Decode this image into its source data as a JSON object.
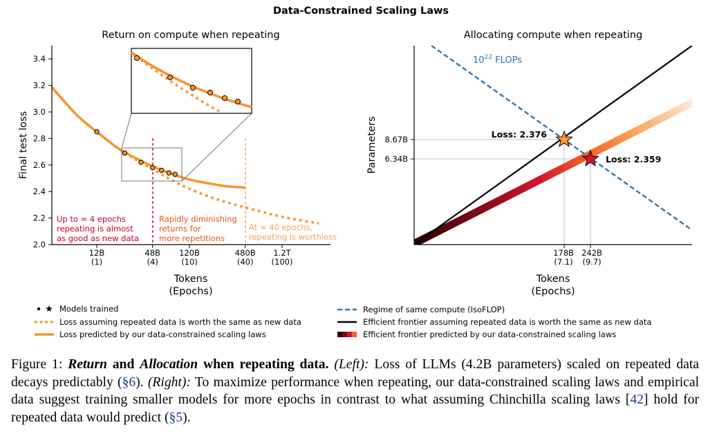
{
  "figure": {
    "suptitle": "Data-Constrained Scaling Laws"
  },
  "chart_data": [
    {
      "id": "left",
      "type": "line",
      "title": "Return on compute when repeating",
      "xlabel": "Tokens",
      "xlabel2": "(Epochs)",
      "ylabel": "Final test loss",
      "ylim": [
        2.0,
        3.5
      ],
      "log_x": true,
      "yticks": [
        {
          "value": 2.0,
          "label": "2.0"
        },
        {
          "value": 2.2,
          "label": "2.2"
        },
        {
          "value": 2.4,
          "label": "2.4"
        },
        {
          "value": 2.6,
          "label": "2.6"
        },
        {
          "value": 2.8,
          "label": "2.8"
        },
        {
          "value": 3.0,
          "label": "3.0"
        },
        {
          "value": 3.2,
          "label": "3.2"
        },
        {
          "value": 3.4,
          "label": "3.4"
        }
      ],
      "xticks": [
        {
          "tokens_b": 12,
          "label": "12B",
          "sub": "(1)"
        },
        {
          "tokens_b": 48,
          "label": "48B",
          "sub": "(4)"
        },
        {
          "tokens_b": 120,
          "label": "120B",
          "sub": "(10)"
        },
        {
          "tokens_b": 480,
          "label": "480B",
          "sub": "(40)"
        },
        {
          "tokens_b": 1200,
          "label": "1.2T",
          "sub": "(100)"
        }
      ],
      "models_trained": [
        {
          "tokens_b": 12,
          "loss": 2.85
        },
        {
          "tokens_b": 24,
          "loss": 2.69
        },
        {
          "tokens_b": 36,
          "loss": 2.62
        },
        {
          "tokens_b": 48,
          "loss": 2.58
        },
        {
          "tokens_b": 60,
          "loss": 2.56
        },
        {
          "tokens_b": 72,
          "loss": 2.54
        },
        {
          "tokens_b": 84,
          "loss": 2.53
        }
      ],
      "loss_same_as_new": {
        "tokens_b": [
          2.7,
          4,
          6,
          8,
          12,
          20,
          30,
          48,
          80,
          120,
          200,
          300,
          480,
          800,
          1200,
          2000,
          3000
        ],
        "loss": [
          3.32,
          3.18,
          3.04,
          2.95,
          2.85,
          2.73,
          2.65,
          2.57,
          2.48,
          2.42,
          2.36,
          2.32,
          2.28,
          2.24,
          2.21,
          2.18,
          2.16
        ]
      },
      "loss_predicted": {
        "tokens_b": [
          2.7,
          4,
          6,
          8,
          12,
          20,
          30,
          48,
          80,
          120,
          200,
          300,
          480,
          800,
          1200,
          2000
        ],
        "loss": [
          3.32,
          3.18,
          3.04,
          2.95,
          2.85,
          2.73,
          2.66,
          2.59,
          2.53,
          2.49,
          2.46,
          2.44,
          2.43,
          2.425,
          2.425,
          2.425
        ]
      },
      "annotations": [
        {
          "text": [
            "Up to ≈ 4 epochs",
            "repeating is almost",
            "as good as new data"
          ],
          "color": "#c4002f"
        },
        {
          "text": [
            "Rapidly diminishing",
            "returns for",
            "more repetitions"
          ],
          "color": "#e4521b"
        },
        {
          "text": [
            "At ≈ 40 epochs,",
            "repeating is worthless"
          ],
          "color": "#f4a25e"
        }
      ]
    },
    {
      "id": "right",
      "type": "line",
      "title": "Allocating compute when repeating",
      "xlabel": "Tokens",
      "xlabel2": "(Epochs)",
      "ylabel": "Parameters",
      "isoflop_label": "10",
      "isoflop_exp": "22",
      "isoflop_suffix": " FLOPs",
      "xticks": [
        {
          "label": "178B",
          "sub": "(7.1)"
        },
        {
          "label": "242B",
          "sub": "(9.7)"
        }
      ],
      "yticks": [
        {
          "label": "8.67B"
        },
        {
          "label": "6.34B"
        }
      ],
      "optima": [
        {
          "tokens_b": 178,
          "params_b": 8.67,
          "loss_label": "Loss: 2.376",
          "color": "#f89a2e"
        },
        {
          "tokens_b": 242,
          "params_b": 6.34,
          "loss_label": "Loss: 2.359",
          "color": "#d9152b"
        }
      ]
    }
  ],
  "legend": {
    "left": [
      {
        "marker": "dot-star",
        "label": "Models trained"
      },
      {
        "marker": "dotted-orange",
        "label": "Loss assuming repeated data is worth the same as new data"
      },
      {
        "marker": "solid-orange",
        "label": "Loss predicted by our data-constrained scaling laws"
      }
    ],
    "right": [
      {
        "marker": "dashed-blue",
        "label": "Regime of same compute (IsoFLOP)"
      },
      {
        "marker": "solid-black",
        "label": "Efficient frontier assuming repeated data is worth the same as new data"
      },
      {
        "marker": "gradient",
        "label": "Efficient frontier predicted by our data-constrained scaling laws"
      }
    ]
  },
  "caption": {
    "fig_label": "Figure 1: ",
    "title_return": "Return",
    "title_and": " and ",
    "title_allocation": "Allocation",
    "title_rest": " when repeating data.",
    "left_label": " (Left):",
    "left_text_a": " Loss of LLMs (4.2B parameters) scaled on repeated data decays predictably (",
    "left_ref": "§6",
    "left_text_b": "). ",
    "right_label": "(Right):",
    "right_text_a": " To maximize performance when repeating, our data-constrained scaling laws and empirical data suggest training smaller models for more epochs in contrast to what assuming Chinchilla scaling laws [",
    "right_ref_a": "42",
    "right_text_b": "] hold for repeated data would predict (",
    "right_ref_b": "§5",
    "right_text_c": ")."
  },
  "colors": {
    "orange": "#f7952f",
    "isoflop": "#2f74a8",
    "red": "#c4002f",
    "grid": "#cfcfcf"
  }
}
